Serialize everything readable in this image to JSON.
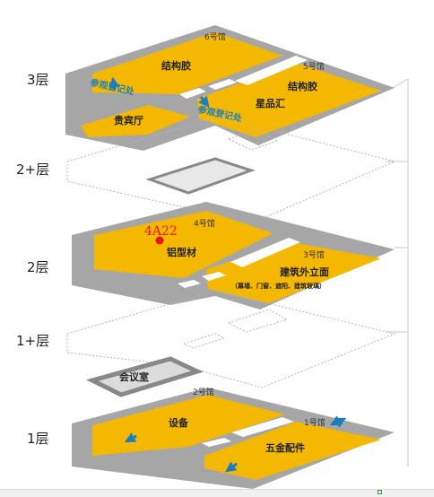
{
  "floors": {
    "f3": "3层",
    "f2plus": "2+层",
    "f2": "2层",
    "f1plus": "1+层",
    "f1": "1层"
  },
  "floor3": {
    "hall6": "6号馆",
    "hall6_name": "结构胶",
    "hall5": "5号馆",
    "hall5_name1": "结构胶",
    "hall5_name2": "星品汇",
    "vip": "贵宾厅",
    "register1": "参观登记处",
    "register2": "参观登记处"
  },
  "floor2": {
    "hall4": "4号馆",
    "hall4_name": "铝型材",
    "hall3": "3号馆",
    "hall3_name": "建筑外立面",
    "hall3_sub": "（幕墙、门窗、遮阳、建筑玻璃）",
    "booth": "4A22"
  },
  "floor1plus": {
    "meeting": "会议室"
  },
  "floor1": {
    "hall2": "2号馆",
    "hall2_name": "设备",
    "hall1": "1号馆",
    "hall1_name": "五金配件"
  },
  "colors": {
    "slab": "#a6a6a6",
    "hall": "#f5b800",
    "accent_blue": "#1a7fc1",
    "booth_red": "#e8141b",
    "dotted": "#b5b5b5"
  }
}
